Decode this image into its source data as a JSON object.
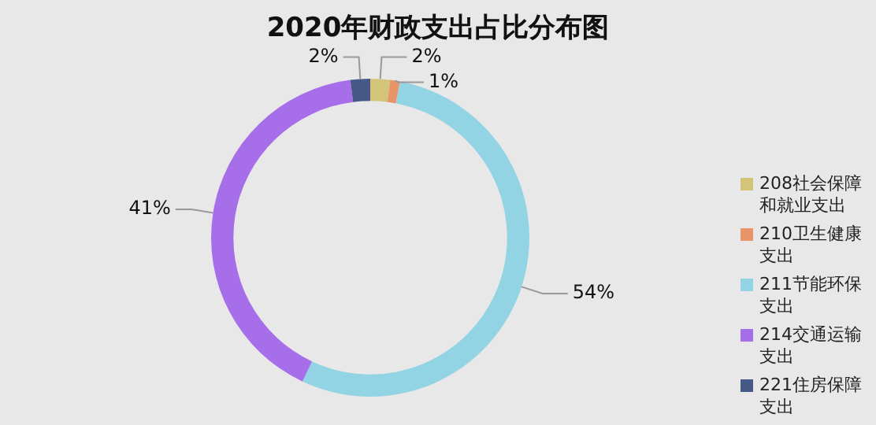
{
  "chart_data": {
    "type": "donut",
    "title": "2020年财政支出占比分布图",
    "categories": [
      "208社会保障和就业支出",
      "210卫生健康支出",
      "211节能环保支出",
      "214交通运输支出",
      "221住房保障支出"
    ],
    "values": [
      2,
      1,
      54,
      41,
      2
    ],
    "value_labels": [
      "2%",
      "1%",
      "54%",
      "41%",
      "2%"
    ],
    "colors": [
      "#d2c57a",
      "#e8956a",
      "#92d3e4",
      "#a66fe9",
      "#465886"
    ],
    "legend": "bottom right"
  }
}
